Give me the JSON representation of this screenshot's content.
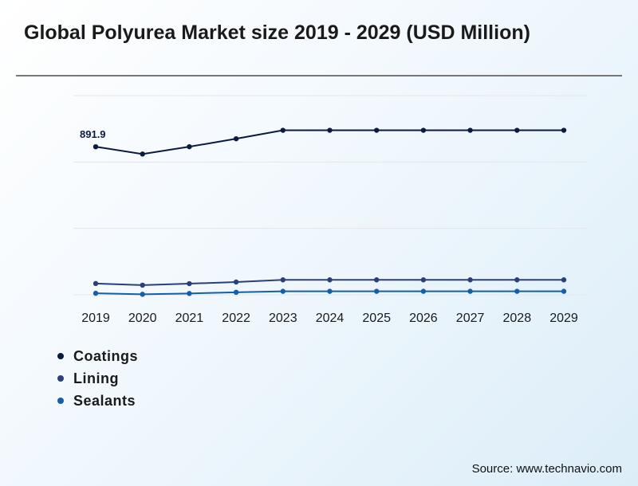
{
  "title": "Global Polyurea Market size 2019 - 2029 (USD Million)",
  "source": "Source: www.technavio.com",
  "colors": {
    "Coatings": "#0b1a3f",
    "Lining": "#2b3f78",
    "Sealants": "#135fa8"
  },
  "chart_data": {
    "type": "line",
    "title": "Global Polyurea Market size 2019 - 2029 (USD Million)",
    "xlabel": "",
    "ylabel": "",
    "x": [
      "2019",
      "2020",
      "2021",
      "2022",
      "2023",
      "2024",
      "2025",
      "2026",
      "2027",
      "2028",
      "2029"
    ],
    "ylim": [
      0,
      1200
    ],
    "grid": true,
    "legend": "bottom-left",
    "series": [
      {
        "name": "Coatings",
        "values": [
          891.9,
          848,
          892,
          940,
          991,
          991,
          991,
          991,
          991,
          991,
          991
        ]
      },
      {
        "name": "Lining",
        "values": [
          68,
          58,
          67,
          77,
          90,
          90,
          90,
          90,
          90,
          90,
          90
        ]
      },
      {
        "name": "Sealants",
        "values": [
          9,
          3,
          8,
          15,
          21,
          21,
          21,
          21,
          21,
          21,
          21
        ]
      }
    ],
    "annotations": [
      {
        "series": "Coatings",
        "x": "2019",
        "text": "891.9"
      }
    ]
  }
}
